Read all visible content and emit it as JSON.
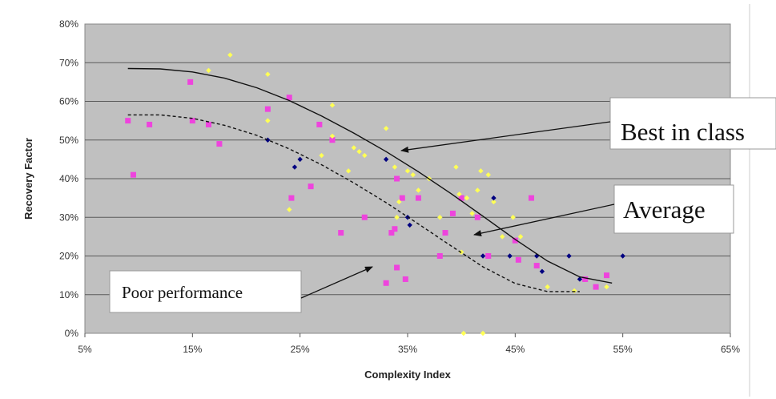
{
  "chart_data": {
    "type": "scatter",
    "title": "",
    "xlabel": "Complexity Index",
    "ylabel": "Recovery Factor",
    "xlim": [
      5,
      65
    ],
    "ylim": [
      0,
      80
    ],
    "x_ticks": [
      "5%",
      "15%",
      "25%",
      "35%",
      "45%",
      "55%",
      "65%"
    ],
    "y_ticks": [
      "0%",
      "10%",
      "20%",
      "30%",
      "40%",
      "50%",
      "60%",
      "70%",
      "80%"
    ],
    "grid": true,
    "plot_background": "#c0c0c0",
    "series": [
      {
        "color": "#ee44dd",
        "marker": "square",
        "points": [
          [
            9,
            55
          ],
          [
            9.5,
            41
          ],
          [
            11,
            54
          ],
          [
            14.8,
            65
          ],
          [
            15,
            55
          ],
          [
            16.5,
            54
          ],
          [
            17.5,
            49
          ],
          [
            22,
            58
          ],
          [
            24,
            61
          ],
          [
            24.2,
            35
          ],
          [
            26,
            38
          ],
          [
            26.8,
            54
          ],
          [
            28,
            50
          ],
          [
            28.8,
            26
          ],
          [
            31,
            30
          ],
          [
            33,
            13
          ],
          [
            33.5,
            26
          ],
          [
            33.8,
            27
          ],
          [
            34,
            17
          ],
          [
            34,
            40
          ],
          [
            34.5,
            35
          ],
          [
            34.8,
            14
          ],
          [
            36,
            35
          ],
          [
            38,
            20
          ],
          [
            38.5,
            26
          ],
          [
            39.2,
            31
          ],
          [
            40,
            35
          ],
          [
            41.5,
            30
          ],
          [
            42.5,
            20
          ],
          [
            45,
            24
          ],
          [
            45.3,
            19
          ],
          [
            46.5,
            35
          ],
          [
            47,
            17.5
          ],
          [
            51.5,
            14
          ],
          [
            52.5,
            12
          ],
          [
            53.5,
            15
          ]
        ]
      },
      {
        "color": "#ffff55",
        "marker": "diamond",
        "points": [
          [
            16.5,
            68
          ],
          [
            18.5,
            72
          ],
          [
            22,
            67
          ],
          [
            22,
            55
          ],
          [
            24,
            32
          ],
          [
            27,
            46
          ],
          [
            28,
            59
          ],
          [
            28,
            51
          ],
          [
            29.5,
            42
          ],
          [
            30,
            48
          ],
          [
            30.5,
            47
          ],
          [
            31,
            46
          ],
          [
            33,
            53
          ],
          [
            33.8,
            43
          ],
          [
            34,
            30
          ],
          [
            34.2,
            34
          ],
          [
            35,
            42
          ],
          [
            35.5,
            41
          ],
          [
            36,
            37
          ],
          [
            37,
            40
          ],
          [
            38,
            30
          ],
          [
            39.5,
            43
          ],
          [
            39.8,
            36
          ],
          [
            40,
            21
          ],
          [
            40.2,
            0
          ],
          [
            40.5,
            35
          ],
          [
            41,
            31
          ],
          [
            41.5,
            37
          ],
          [
            41.8,
            42
          ],
          [
            42,
            0
          ],
          [
            42.5,
            41
          ],
          [
            43,
            34
          ],
          [
            43.8,
            25
          ],
          [
            44.8,
            30
          ],
          [
            45.5,
            25
          ],
          [
            48,
            12
          ],
          [
            50.5,
            11
          ],
          [
            53.5,
            12
          ]
        ]
      },
      {
        "color": "#000080",
        "marker": "diamond",
        "points": [
          [
            22,
            50
          ],
          [
            24.5,
            43
          ],
          [
            25,
            45
          ],
          [
            33,
            45
          ],
          [
            35,
            30
          ],
          [
            35.2,
            28
          ],
          [
            42,
            20
          ],
          [
            43,
            35
          ],
          [
            44.5,
            20
          ],
          [
            47,
            20
          ],
          [
            47.5,
            16
          ],
          [
            50,
            20
          ],
          [
            51,
            14
          ],
          [
            55,
            20
          ]
        ]
      }
    ],
    "trend_lines": [
      {
        "name": "Best in class",
        "style": "solid",
        "points": [
          [
            9,
            68.5
          ],
          [
            12,
            68.4
          ],
          [
            15,
            67.6
          ],
          [
            18,
            66
          ],
          [
            21,
            63.5
          ],
          [
            24,
            60.2
          ],
          [
            27,
            56.2
          ],
          [
            30,
            51.8
          ],
          [
            33,
            47
          ],
          [
            36,
            41.8
          ],
          [
            39,
            36.2
          ],
          [
            42,
            30.3
          ],
          [
            45,
            24.3
          ],
          [
            48,
            18.7
          ],
          [
            51,
            14.6
          ],
          [
            54,
            13
          ]
        ]
      },
      {
        "name": "Average",
        "style": "dashed",
        "points": [
          [
            9,
            56.5
          ],
          [
            12,
            56.5
          ],
          [
            15,
            55.6
          ],
          [
            18,
            53.8
          ],
          [
            21,
            51.2
          ],
          [
            24,
            47.7
          ],
          [
            27,
            43.6
          ],
          [
            30,
            38.9
          ],
          [
            33,
            33.8
          ],
          [
            36,
            28.3
          ],
          [
            39,
            22.7
          ],
          [
            42,
            17.2
          ],
          [
            45,
            12.9
          ],
          [
            48,
            10.8
          ],
          [
            51,
            10.8
          ]
        ]
      }
    ],
    "annotations": [
      {
        "text": "Best in class",
        "arrow_to": [
          38.2,
          47.6
        ]
      },
      {
        "text": "Average",
        "arrow_to": [
          39.4,
          25.3
        ]
      },
      {
        "text": "Poor performance",
        "arrow_to": [
          34.1,
          17.3
        ]
      }
    ]
  }
}
